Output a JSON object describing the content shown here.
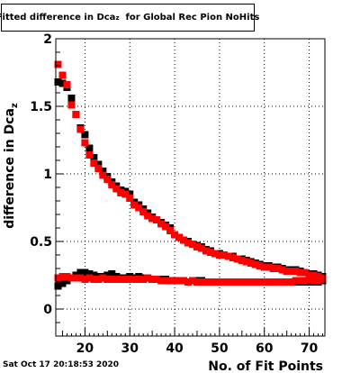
{
  "title_prefix": "Fitted difference in Dca",
  "title_sub": "z",
  "title_suffix": "  for Global Rec Pion NoHits",
  "timestamp": "Sat Oct 17 20:18:53 2020",
  "chart_data": {
    "type": "scatter",
    "title": "Fitted difference in Dca_z  for Global Rec Pion NoHits",
    "xlabel": "No. of Fit Points",
    "ylabel_prefix": "difference in Dca",
    "ylabel_sub": "z",
    "xlim": [
      13.5,
      73.5
    ],
    "ylim": [
      -0.2,
      2.0
    ],
    "x_ticks": [
      20,
      30,
      40,
      50,
      60,
      70
    ],
    "y_ticks": [
      0,
      0.5,
      1,
      1.5,
      2
    ],
    "y_tick_labels": [
      "0",
      "0.5",
      "1",
      "1.5",
      "2"
    ],
    "grid": true,
    "colors": {
      "black_series": "#000000",
      "red_series": "#ff0000",
      "frame": "#000000",
      "grid": "#000000"
    },
    "series": [
      {
        "color": "#000000",
        "values": [
          [
            14,
            1.68
          ],
          [
            15,
            1.67
          ],
          [
            16,
            1.64
          ],
          [
            17,
            1.56
          ],
          [
            18,
            1.44
          ],
          [
            19,
            1.34
          ],
          [
            20,
            1.29
          ],
          [
            21,
            1.19
          ],
          [
            22,
            1.12
          ],
          [
            23,
            1.07
          ],
          [
            24,
            1.02
          ],
          [
            25,
            0.98
          ],
          [
            26,
            0.94
          ],
          [
            27,
            0.91
          ],
          [
            28,
            0.88
          ],
          [
            29,
            0.87
          ],
          [
            30,
            0.85
          ],
          [
            31,
            0.79
          ],
          [
            32,
            0.77
          ],
          [
            33,
            0.74
          ],
          [
            34,
            0.71
          ],
          [
            35,
            0.68
          ],
          [
            36,
            0.66
          ],
          [
            37,
            0.64
          ],
          [
            38,
            0.62
          ],
          [
            39,
            0.6
          ],
          [
            40,
            0.55
          ],
          [
            41,
            0.53
          ],
          [
            42,
            0.51
          ],
          [
            43,
            0.5
          ],
          [
            44,
            0.48
          ],
          [
            45,
            0.47
          ],
          [
            46,
            0.46
          ],
          [
            47,
            0.44
          ],
          [
            48,
            0.43
          ],
          [
            49,
            0.41
          ],
          [
            50,
            0.41
          ],
          [
            51,
            0.4
          ],
          [
            52,
            0.39
          ],
          [
            53,
            0.39
          ],
          [
            54,
            0.37
          ],
          [
            55,
            0.37
          ],
          [
            56,
            0.36
          ],
          [
            57,
            0.35
          ],
          [
            58,
            0.34
          ],
          [
            59,
            0.33
          ],
          [
            60,
            0.32
          ],
          [
            61,
            0.32
          ],
          [
            62,
            0.31
          ],
          [
            63,
            0.31
          ],
          [
            64,
            0.3
          ],
          [
            65,
            0.29
          ],
          [
            66,
            0.29
          ],
          [
            67,
            0.29
          ],
          [
            68,
            0.28
          ],
          [
            69,
            0.27
          ],
          [
            70,
            0.26
          ],
          [
            71,
            0.26
          ],
          [
            72,
            0.25
          ],
          [
            73,
            0.24
          ]
        ]
      },
      {
        "color": "#000000",
        "values": [
          [
            14,
            0.17
          ],
          [
            15,
            0.19
          ],
          [
            16,
            0.21
          ],
          [
            17,
            0.23
          ],
          [
            18,
            0.25
          ],
          [
            19,
            0.27
          ],
          [
            20,
            0.27
          ],
          [
            21,
            0.26
          ],
          [
            22,
            0.25
          ],
          [
            23,
            0.24
          ],
          [
            24,
            0.24
          ],
          [
            25,
            0.25
          ],
          [
            26,
            0.26
          ],
          [
            27,
            0.24
          ],
          [
            28,
            0.23
          ],
          [
            29,
            0.23
          ],
          [
            30,
            0.24
          ],
          [
            31,
            0.23
          ],
          [
            32,
            0.24
          ],
          [
            33,
            0.23
          ],
          [
            34,
            0.23
          ],
          [
            35,
            0.22
          ],
          [
            36,
            0.22
          ],
          [
            37,
            0.22
          ],
          [
            38,
            0.22
          ],
          [
            39,
            0.21
          ],
          [
            40,
            0.21
          ],
          [
            41,
            0.21
          ],
          [
            42,
            0.21
          ],
          [
            43,
            0.2
          ],
          [
            44,
            0.21
          ],
          [
            45,
            0.21
          ],
          [
            46,
            0.21
          ],
          [
            47,
            0.2
          ],
          [
            48,
            0.2
          ],
          [
            49,
            0.2
          ],
          [
            50,
            0.2
          ],
          [
            51,
            0.2
          ],
          [
            52,
            0.2
          ],
          [
            53,
            0.2
          ],
          [
            54,
            0.2
          ],
          [
            55,
            0.2
          ],
          [
            56,
            0.2
          ],
          [
            57,
            0.2
          ],
          [
            58,
            0.2
          ],
          [
            59,
            0.2
          ],
          [
            60,
            0.2
          ],
          [
            61,
            0.2
          ],
          [
            62,
            0.2
          ],
          [
            63,
            0.2
          ],
          [
            64,
            0.2
          ],
          [
            65,
            0.2
          ],
          [
            66,
            0.2
          ],
          [
            67,
            0.2
          ],
          [
            68,
            0.2
          ],
          [
            69,
            0.2
          ],
          [
            70,
            0.2
          ],
          [
            71,
            0.2
          ],
          [
            72,
            0.2
          ],
          [
            73,
            0.21
          ]
        ]
      },
      {
        "color": "#ff0000",
        "values": [
          [
            14,
            1.81
          ],
          [
            15,
            1.73
          ],
          [
            16,
            1.66
          ],
          [
            17,
            1.51
          ],
          [
            18,
            1.44
          ],
          [
            19,
            1.33
          ],
          [
            20,
            1.23
          ],
          [
            21,
            1.14
          ],
          [
            22,
            1.08
          ],
          [
            23,
            1.04
          ],
          [
            24,
            0.99
          ],
          [
            25,
            0.96
          ],
          [
            26,
            0.92
          ],
          [
            27,
            0.89
          ],
          [
            28,
            0.86
          ],
          [
            29,
            0.85
          ],
          [
            30,
            0.82
          ],
          [
            31,
            0.77
          ],
          [
            32,
            0.75
          ],
          [
            33,
            0.72
          ],
          [
            34,
            0.69
          ],
          [
            35,
            0.67
          ],
          [
            36,
            0.66
          ],
          [
            37,
            0.63
          ],
          [
            38,
            0.61
          ],
          [
            39,
            0.58
          ],
          [
            40,
            0.55
          ],
          [
            41,
            0.53
          ],
          [
            42,
            0.51
          ],
          [
            43,
            0.49
          ],
          [
            44,
            0.48
          ],
          [
            45,
            0.46
          ],
          [
            46,
            0.45
          ],
          [
            47,
            0.43
          ],
          [
            48,
            0.42
          ],
          [
            49,
            0.41
          ],
          [
            50,
            0.4
          ],
          [
            51,
            0.4
          ],
          [
            52,
            0.39
          ],
          [
            53,
            0.38
          ],
          [
            54,
            0.37
          ],
          [
            55,
            0.36
          ],
          [
            56,
            0.35
          ],
          [
            57,
            0.34
          ],
          [
            58,
            0.33
          ],
          [
            59,
            0.32
          ],
          [
            60,
            0.31
          ],
          [
            61,
            0.31
          ],
          [
            62,
            0.3
          ],
          [
            63,
            0.3
          ],
          [
            64,
            0.29
          ],
          [
            65,
            0.28
          ],
          [
            66,
            0.28
          ],
          [
            67,
            0.28
          ],
          [
            68,
            0.27
          ],
          [
            69,
            0.27
          ],
          [
            70,
            0.25
          ],
          [
            71,
            0.25
          ],
          [
            72,
            0.24
          ],
          [
            73,
            0.23
          ]
        ]
      },
      {
        "color": "#ff0000",
        "values": [
          [
            14,
            0.23
          ],
          [
            15,
            0.24
          ],
          [
            16,
            0.24
          ],
          [
            17,
            0.23
          ],
          [
            18,
            0.23
          ],
          [
            19,
            0.23
          ],
          [
            20,
            0.22
          ],
          [
            21,
            0.23
          ],
          [
            22,
            0.22
          ],
          [
            23,
            0.22
          ],
          [
            24,
            0.23
          ],
          [
            25,
            0.22
          ],
          [
            26,
            0.22
          ],
          [
            27,
            0.22
          ],
          [
            28,
            0.22
          ],
          [
            29,
            0.22
          ],
          [
            30,
            0.22
          ],
          [
            31,
            0.22
          ],
          [
            32,
            0.22
          ],
          [
            33,
            0.22
          ],
          [
            34,
            0.23
          ],
          [
            35,
            0.22
          ],
          [
            36,
            0.22
          ],
          [
            37,
            0.21
          ],
          [
            38,
            0.21
          ],
          [
            39,
            0.21
          ],
          [
            40,
            0.21
          ],
          [
            41,
            0.21
          ],
          [
            42,
            0.21
          ],
          [
            43,
            0.2
          ],
          [
            44,
            0.21
          ],
          [
            45,
            0.2
          ],
          [
            46,
            0.2
          ],
          [
            47,
            0.2
          ],
          [
            48,
            0.2
          ],
          [
            49,
            0.2
          ],
          [
            50,
            0.2
          ],
          [
            51,
            0.2
          ],
          [
            52,
            0.2
          ],
          [
            53,
            0.2
          ],
          [
            54,
            0.2
          ],
          [
            55,
            0.2
          ],
          [
            56,
            0.2
          ],
          [
            57,
            0.2
          ],
          [
            58,
            0.2
          ],
          [
            59,
            0.2
          ],
          [
            60,
            0.2
          ],
          [
            61,
            0.2
          ],
          [
            62,
            0.2
          ],
          [
            63,
            0.2
          ],
          [
            64,
            0.2
          ],
          [
            65,
            0.2
          ],
          [
            66,
            0.2
          ],
          [
            67,
            0.21
          ],
          [
            68,
            0.21
          ],
          [
            69,
            0.21
          ],
          [
            70,
            0.22
          ],
          [
            71,
            0.21
          ],
          [
            72,
            0.21
          ],
          [
            73,
            0.22
          ]
        ]
      }
    ]
  }
}
